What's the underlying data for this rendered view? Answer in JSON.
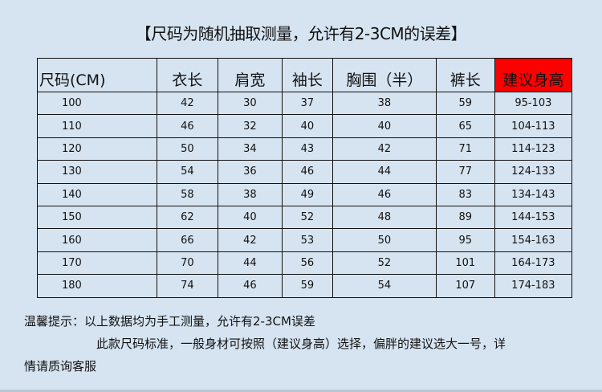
{
  "title": "【尺码为随机抽取测量，允许有2-3CM的误差】",
  "table": {
    "headers": [
      "尺码(CM)",
      "衣长",
      "肩宽",
      "袖长",
      "胸围（半）",
      "裤长",
      "建议身高"
    ],
    "highlight_color": "#ff0000",
    "rows": [
      [
        "100",
        "42",
        "30",
        "37",
        "38",
        "59",
        "95-103"
      ],
      [
        "110",
        "46",
        "32",
        "40",
        "40",
        "65",
        "104-113"
      ],
      [
        "120",
        "50",
        "34",
        "43",
        "42",
        "71",
        "114-123"
      ],
      [
        "130",
        "54",
        "36",
        "46",
        "44",
        "77",
        "124-133"
      ],
      [
        "140",
        "58",
        "38",
        "49",
        "46",
        "83",
        "134-143"
      ],
      [
        "150",
        "62",
        "40",
        "52",
        "48",
        "89",
        "144-153"
      ],
      [
        "160",
        "66",
        "42",
        "53",
        "50",
        "95",
        "154-163"
      ],
      [
        "170",
        "70",
        "44",
        "56",
        "52",
        "101",
        "164-173"
      ],
      [
        "180",
        "74",
        "46",
        "59",
        "54",
        "107",
        "174-183"
      ]
    ]
  },
  "notes": {
    "line1": "温馨提示：以上数据均为手工测量，允许有2-3CM误差",
    "line2": "此款尺码标准，一般身材可按照（建议身高）选择，偏胖的建议选大一号，详",
    "line3": "情请质询客服"
  }
}
